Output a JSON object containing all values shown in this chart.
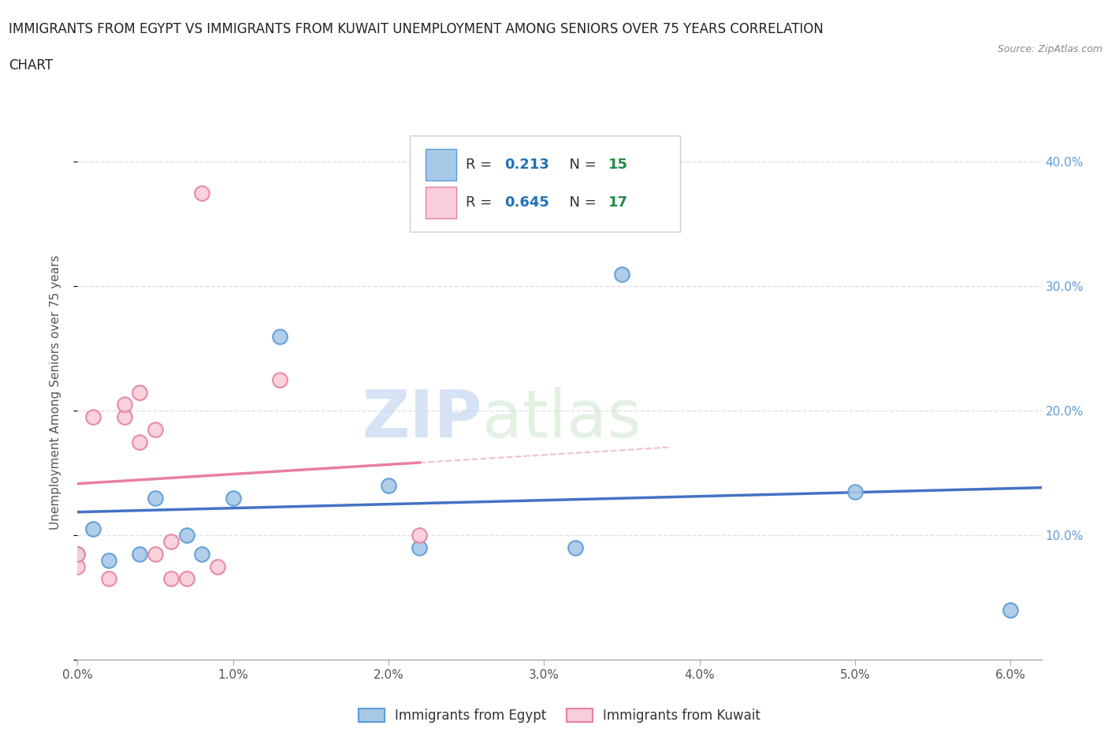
{
  "title_line1": "IMMIGRANTS FROM EGYPT VS IMMIGRANTS FROM KUWAIT UNEMPLOYMENT AMONG SENIORS OVER 75 YEARS CORRELATION",
  "title_line2": "CHART",
  "source": "Source: ZipAtlas.com",
  "ylabel": "Unemployment Among Seniors over 75 years",
  "xlim": [
    0.0,
    0.062
  ],
  "ylim": [
    0.0,
    0.43
  ],
  "xticks": [
    0.0,
    0.01,
    0.02,
    0.03,
    0.04,
    0.05,
    0.06
  ],
  "xticklabels": [
    "0.0%",
    "1.0%",
    "2.0%",
    "3.0%",
    "4.0%",
    "5.0%",
    "6.0%"
  ],
  "yticks": [
    0.0,
    0.1,
    0.2,
    0.3,
    0.4
  ],
  "yticklabels_right": [
    "",
    "10.0%",
    "20.0%",
    "30.0%",
    "40.0%"
  ],
  "egypt_face_color": "#a8c8e8",
  "egypt_edge_color": "#5b9bd5",
  "kuwait_face_color": "#f9cdd9",
  "kuwait_edge_color": "#e87fa0",
  "egypt_line_color": "#4472c4",
  "kuwait_line_color": "#e06080",
  "R_egypt": 0.213,
  "N_egypt": 15,
  "R_kuwait": 0.645,
  "N_kuwait": 17,
  "egypt_x": [
    0.0,
    0.001,
    0.002,
    0.004,
    0.005,
    0.007,
    0.008,
    0.01,
    0.013,
    0.02,
    0.022,
    0.032,
    0.035,
    0.05,
    0.06
  ],
  "egypt_y": [
    0.085,
    0.105,
    0.08,
    0.085,
    0.13,
    0.1,
    0.085,
    0.13,
    0.26,
    0.14,
    0.09,
    0.09,
    0.31,
    0.135,
    0.04
  ],
  "kuwait_x": [
    0.0,
    0.0,
    0.001,
    0.002,
    0.003,
    0.003,
    0.004,
    0.004,
    0.005,
    0.005,
    0.006,
    0.006,
    0.007,
    0.008,
    0.009,
    0.013,
    0.022
  ],
  "kuwait_y": [
    0.075,
    0.085,
    0.195,
    0.065,
    0.195,
    0.205,
    0.175,
    0.215,
    0.085,
    0.185,
    0.065,
    0.095,
    0.065,
    0.375,
    0.075,
    0.225,
    0.1
  ],
  "watermark_zip": "ZIP",
  "watermark_atlas": "atlas",
  "background_color": "#ffffff",
  "grid_color": "#e0e0e0",
  "title_color": "#222222",
  "legend_R_color": "#2171b5",
  "legend_N_color": "#238b45"
}
